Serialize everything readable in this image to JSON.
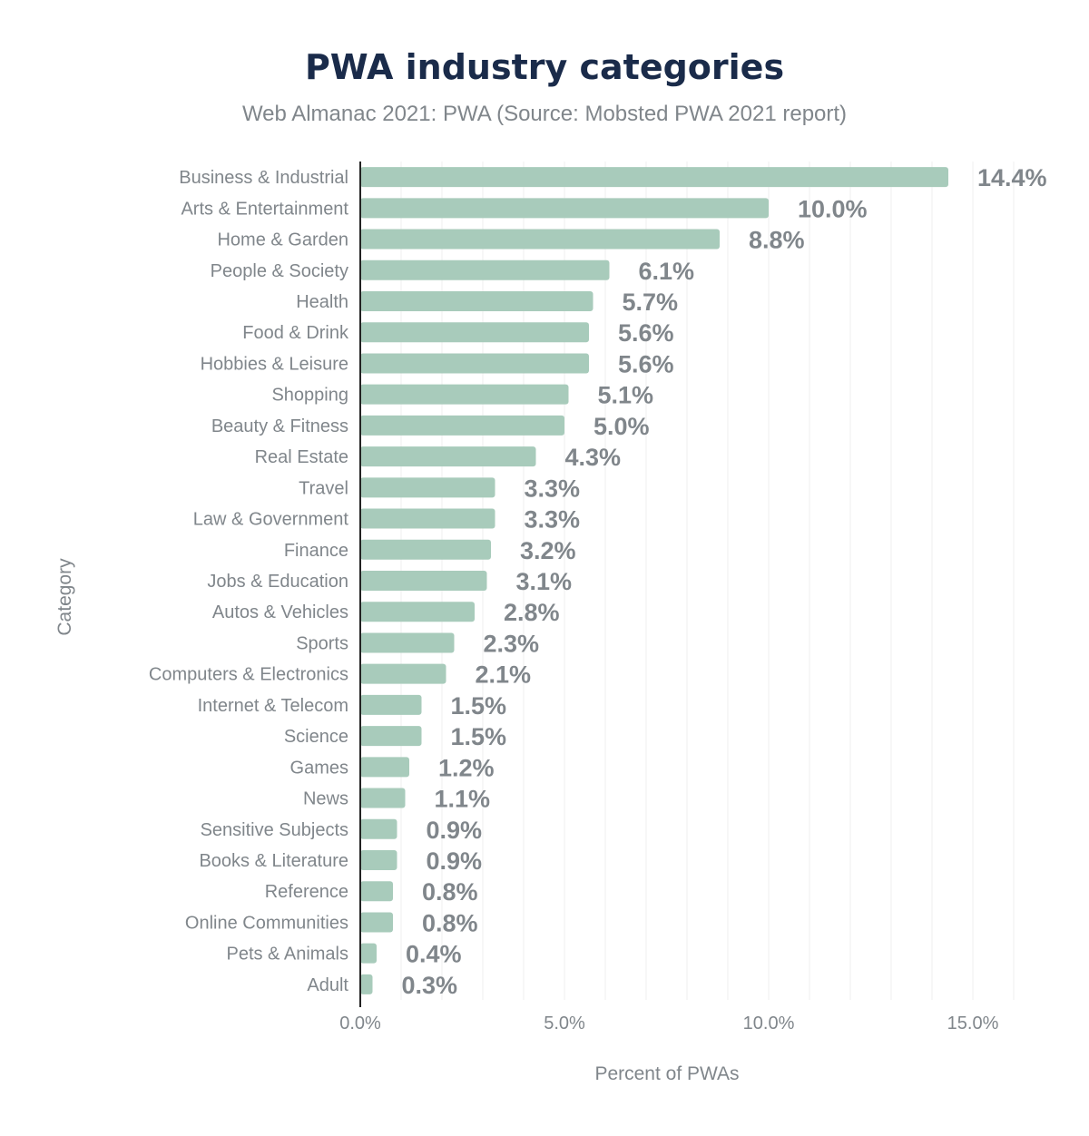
{
  "chart_data": {
    "type": "bar",
    "orientation": "horizontal",
    "title": "PWA industry categories",
    "subtitle": "Web Almanac 2021: PWA (Source: Mobsted PWA 2021 report)",
    "xlabel": "Percent of PWAs",
    "ylabel": "Category",
    "xlim": [
      0,
      15
    ],
    "xticks": [
      "0.0%",
      "5.0%",
      "10.0%",
      "15.0%"
    ],
    "grid": true,
    "bar_color": "#a8cbbb",
    "categories": [
      "Business & Industrial",
      "Arts & Entertainment",
      "Home & Garden",
      "People & Society",
      "Health",
      "Food & Drink",
      "Hobbies & Leisure",
      "Shopping",
      "Beauty & Fitness",
      "Real Estate",
      "Travel",
      "Law & Government",
      "Finance",
      "Jobs & Education",
      "Autos & Vehicles",
      "Sports",
      "Computers & Electronics",
      "Internet & Telecom",
      "Science",
      "Games",
      "News",
      "Sensitive Subjects",
      "Books & Literature",
      "Reference",
      "Online Communities",
      "Pets & Animals",
      "Adult"
    ],
    "values": [
      14.4,
      10.0,
      8.8,
      6.1,
      5.7,
      5.6,
      5.6,
      5.1,
      5.0,
      4.3,
      3.3,
      3.3,
      3.2,
      3.1,
      2.8,
      2.3,
      2.1,
      1.5,
      1.5,
      1.2,
      1.1,
      0.9,
      0.9,
      0.8,
      0.8,
      0.4,
      0.3
    ],
    "labels": [
      "14.4%",
      "10.0%",
      "8.8%",
      "6.1%",
      "5.7%",
      "5.6%",
      "5.6%",
      "5.1%",
      "5.0%",
      "4.3%",
      "3.3%",
      "3.3%",
      "3.2%",
      "3.1%",
      "2.8%",
      "2.3%",
      "2.1%",
      "1.5%",
      "1.5%",
      "1.2%",
      "1.1%",
      "0.9%",
      "0.9%",
      "0.8%",
      "0.8%",
      "0.4%",
      "0.3%"
    ]
  }
}
